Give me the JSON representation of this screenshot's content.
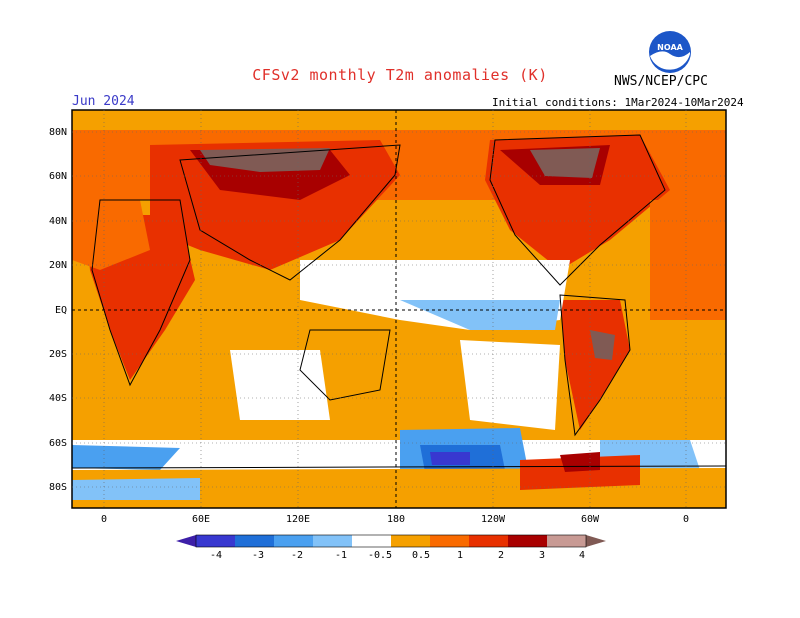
{
  "header": {
    "title": "CFSv2 monthly T2m anomalies (K)",
    "month": "Jun 2024",
    "initial_conditions": "Initial conditions: 1Mar2024-10Mar2024",
    "agency": "NWS/NCEP/CPC",
    "logo_text": "NOAA"
  },
  "map": {
    "lat_labels": [
      "80N",
      "60N",
      "40N",
      "20N",
      "EQ",
      "20S",
      "40S",
      "60S",
      "80S"
    ],
    "lon_labels": [
      "0",
      "60E",
      "120E",
      "180",
      "120W",
      "60W",
      "0"
    ]
  },
  "colorbar": {
    "labels": [
      "-4",
      "-3",
      "-2",
      "-1",
      "-0.5",
      "0.5",
      "1",
      "2",
      "3",
      "4"
    ],
    "colors": [
      "#3d1fa8",
      "#3838d0",
      "#1f6fd8",
      "#4aa0f0",
      "#82c2f8",
      "#ffffff",
      "#f5a000",
      "#f96a00",
      "#e83000",
      "#a80000",
      "#c89a94",
      "#805a54"
    ]
  },
  "colors": {
    "title": "#e0302a",
    "month": "#3a3ac8",
    "frame": "#000000"
  }
}
